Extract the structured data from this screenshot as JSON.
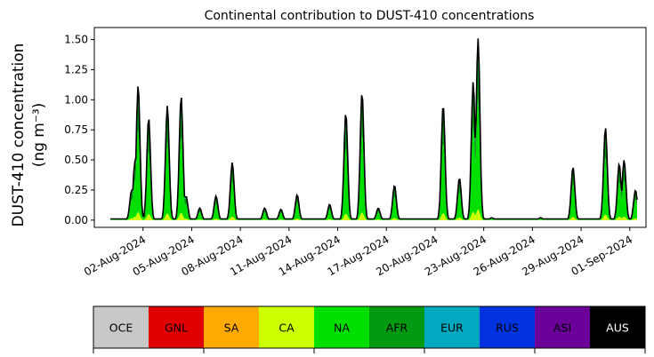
{
  "chart_data": {
    "type": "area",
    "stacked": true,
    "title": "Continental contribution to DUST-410 concentrations",
    "ylabel_line1": "DUST-410 concentration",
    "ylabel_line2": "(ng m⁻³)",
    "xlabel": "",
    "x_start": "2024-07-31",
    "x_end": "2024-09-01",
    "xlim": [
      "2024-07-30",
      "2024-09-02"
    ],
    "ylim": [
      -0.06,
      1.6
    ],
    "yticks": [
      0.0,
      0.25,
      0.5,
      0.75,
      1.0,
      1.25,
      1.5
    ],
    "ytick_labels": [
      "0.00",
      "0.25",
      "0.50",
      "0.75",
      "1.00",
      "1.25",
      "1.50"
    ],
    "xticks": [
      "2024-08-02",
      "2024-08-05",
      "2024-08-08",
      "2024-08-11",
      "2024-08-14",
      "2024-08-17",
      "2024-08-20",
      "2024-08-23",
      "2024-08-26",
      "2024-08-29",
      "2024-09-01"
    ],
    "xtick_labels": [
      "02-Aug-2024",
      "05-Aug-2024",
      "08-Aug-2024",
      "11-Aug-2024",
      "14-Aug-2024",
      "17-Aug-2024",
      "20-Aug-2024",
      "23-Aug-2024",
      "26-Aug-2024",
      "29-Aug-2024",
      "01-Sep-2024"
    ],
    "total_outline_color": "#000000",
    "peaks": [
      {
        "date": "2024-07-31",
        "value": 0.01
      },
      {
        "date": "2024-08-01",
        "value": 0.25
      },
      {
        "date": "2024-08-01",
        "value": 0.48
      },
      {
        "date": "2024-08-01",
        "value": 1.12
      },
      {
        "date": "2024-08-02",
        "value": 0.85
      },
      {
        "date": "2024-08-02",
        "value": 0.01
      },
      {
        "date": "2024-08-03",
        "value": 0.95
      },
      {
        "date": "2024-08-04",
        "value": 1.03
      },
      {
        "date": "2024-08-04",
        "value": 0.2
      },
      {
        "date": "2024-08-05",
        "value": 0.1
      },
      {
        "date": "2024-08-06",
        "value": 0.2
      },
      {
        "date": "2024-08-07",
        "value": 0.48
      },
      {
        "date": "2024-08-09",
        "value": 0.1
      },
      {
        "date": "2024-08-10",
        "value": 0.09
      },
      {
        "date": "2024-08-11",
        "value": 0.21
      },
      {
        "date": "2024-08-13",
        "value": 0.13
      },
      {
        "date": "2024-08-14",
        "value": 0.89
      },
      {
        "date": "2024-08-15",
        "value": 1.06
      },
      {
        "date": "2024-08-16",
        "value": 0.1
      },
      {
        "date": "2024-08-17",
        "value": 0.29
      },
      {
        "date": "2024-08-19",
        "value": 0.01
      },
      {
        "date": "2024-08-20",
        "value": 0.96
      },
      {
        "date": "2024-08-21",
        "value": 0.35
      },
      {
        "date": "2024-08-22",
        "value": 1.15
      },
      {
        "date": "2024-08-22",
        "value": 1.51
      },
      {
        "date": "2024-08-23",
        "value": 0.02
      },
      {
        "date": "2024-08-26",
        "value": 0.02
      },
      {
        "date": "2024-08-28",
        "value": 0.44
      },
      {
        "date": "2024-08-30",
        "value": 0.77
      },
      {
        "date": "2024-08-31",
        "value": 0.47
      },
      {
        "date": "2024-08-31",
        "value": 0.5
      },
      {
        "date": "2024-09-01",
        "value": 0.25
      },
      {
        "date": "2024-09-01",
        "value": 0.12
      }
    ],
    "legend": [
      {
        "label": "OCE",
        "color": "#c8c8c8",
        "text_color": "#000000"
      },
      {
        "label": "GNL",
        "color": "#e00000",
        "text_color": "#000000"
      },
      {
        "label": "SA",
        "color": "#ffaa00",
        "text_color": "#000000"
      },
      {
        "label": "CA",
        "color": "#ccff00",
        "text_color": "#000000"
      },
      {
        "label": "NA",
        "color": "#00e000",
        "text_color": "#000000"
      },
      {
        "label": "AFR",
        "color": "#009a12",
        "text_color": "#000000"
      },
      {
        "label": "EUR",
        "color": "#00a8c0",
        "text_color": "#000000"
      },
      {
        "label": "RUS",
        "color": "#0033e0",
        "text_color": "#000000"
      },
      {
        "label": "ASI",
        "color": "#6a0099",
        "text_color": "#000000"
      },
      {
        "label": "AUS",
        "color": "#000000",
        "text_color": "#ffffff"
      }
    ]
  }
}
